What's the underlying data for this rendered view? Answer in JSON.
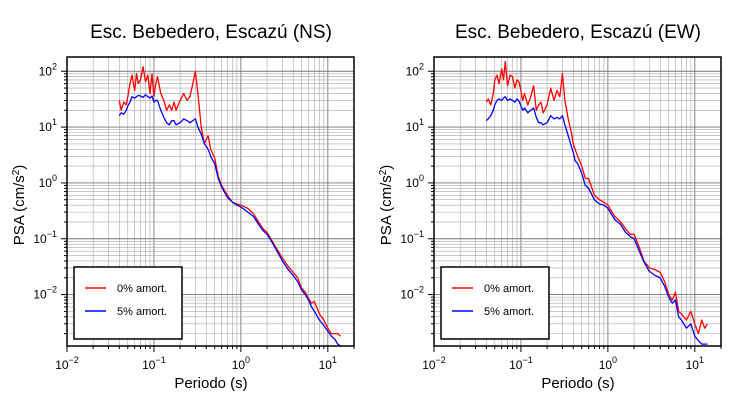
{
  "chart_data": [
    {
      "type": "line",
      "title": "Esc. Bebedero, Escazú (NS)",
      "xlabel": "Periodo (s)",
      "ylabel": "PSA (cm/s²)",
      "xscale": "log",
      "yscale": "log",
      "xlim": [
        0.01,
        20
      ],
      "ylim": [
        0.0012,
        180
      ],
      "grid": true,
      "legend_position": "bottom-left",
      "x_ticks": [
        {
          "base": "10",
          "exp": "−2",
          "value": 0.01
        },
        {
          "base": "10",
          "exp": "−1",
          "value": 0.1
        },
        {
          "base": "10",
          "exp": "0",
          "value": 1
        },
        {
          "base": "10",
          "exp": "1",
          "value": 10
        }
      ],
      "y_ticks": [
        {
          "base": "10",
          "exp": "−2",
          "value": 0.01
        },
        {
          "base": "10",
          "exp": "−1",
          "value": 0.1
        },
        {
          "base": "10",
          "exp": "0",
          "value": 1
        },
        {
          "base": "10",
          "exp": "1",
          "value": 10
        },
        {
          "base": "10",
          "exp": "2",
          "value": 100
        }
      ],
      "series": [
        {
          "name": "0% amort.",
          "color": "#ff0000",
          "x": [
            0.04,
            0.042,
            0.045,
            0.048,
            0.05,
            0.053,
            0.056,
            0.06,
            0.063,
            0.066,
            0.07,
            0.075,
            0.08,
            0.085,
            0.09,
            0.095,
            0.1,
            0.105,
            0.11,
            0.12,
            0.13,
            0.14,
            0.15,
            0.16,
            0.17,
            0.18,
            0.2,
            0.22,
            0.24,
            0.26,
            0.28,
            0.3,
            0.32,
            0.35,
            0.38,
            0.4,
            0.42,
            0.45,
            0.5,
            0.55,
            0.6,
            0.7,
            0.8,
            0.9,
            1.0,
            1.2,
            1.4,
            1.6,
            1.8,
            2.0,
            2.3,
            2.6,
            3.0,
            3.5,
            4.0,
            4.5,
            5.0,
            5.5,
            6.0,
            6.5,
            7.0,
            8.0,
            9.0,
            10.0,
            11.0,
            12.0,
            13.0,
            14.0
          ],
          "y": [
            30,
            20,
            28,
            25,
            35,
            60,
            85,
            45,
            90,
            60,
            70,
            120,
            65,
            85,
            40,
            90,
            35,
            60,
            80,
            40,
            30,
            20,
            25,
            20,
            28,
            20,
            30,
            40,
            30,
            35,
            60,
            100,
            40,
            10,
            5,
            6,
            7,
            4,
            2.8,
            1.3,
            0.9,
            0.6,
            0.45,
            0.42,
            0.4,
            0.35,
            0.28,
            0.2,
            0.15,
            0.13,
            0.09,
            0.065,
            0.045,
            0.032,
            0.025,
            0.02,
            0.013,
            0.011,
            0.0085,
            0.007,
            0.0075,
            0.0045,
            0.0035,
            0.0025,
            0.002,
            0.002,
            0.002,
            0.0018
          ]
        },
        {
          "name": "5% amort.",
          "color": "#0000ff",
          "x": [
            0.04,
            0.042,
            0.045,
            0.048,
            0.05,
            0.053,
            0.056,
            0.06,
            0.063,
            0.066,
            0.07,
            0.075,
            0.08,
            0.085,
            0.09,
            0.095,
            0.1,
            0.105,
            0.11,
            0.12,
            0.13,
            0.14,
            0.15,
            0.16,
            0.17,
            0.18,
            0.2,
            0.22,
            0.24,
            0.26,
            0.28,
            0.3,
            0.32,
            0.35,
            0.38,
            0.4,
            0.42,
            0.45,
            0.5,
            0.55,
            0.6,
            0.7,
            0.8,
            0.9,
            1.0,
            1.2,
            1.4,
            1.6,
            1.8,
            2.0,
            2.3,
            2.6,
            3.0,
            3.5,
            4.0,
            4.5,
            5.0,
            5.5,
            6.0,
            6.5,
            7.0,
            8.0,
            9.0,
            10.0,
            11.0,
            12.0,
            13.0,
            14.0
          ],
          "y": [
            16,
            18,
            17,
            20,
            24,
            28,
            35,
            33,
            35,
            37,
            36,
            34,
            38,
            35,
            33,
            36,
            28,
            30,
            30,
            20,
            15,
            12,
            11,
            13,
            13,
            11,
            12,
            14,
            13,
            12,
            13,
            14,
            10,
            7.5,
            5,
            4.5,
            4,
            3,
            2.2,
            1.2,
            0.85,
            0.55,
            0.45,
            0.4,
            0.37,
            0.3,
            0.25,
            0.18,
            0.14,
            0.12,
            0.085,
            0.06,
            0.04,
            0.028,
            0.022,
            0.017,
            0.012,
            0.01,
            0.008,
            0.006,
            0.005,
            0.0035,
            0.0028,
            0.0022,
            0.0018,
            0.0016,
            0.0013,
            0.0012
          ]
        }
      ]
    },
    {
      "type": "line",
      "title": "Esc. Bebedero, Escazú (EW)",
      "xlabel": "Periodo (s)",
      "ylabel": "PSA (cm/s²)",
      "xscale": "log",
      "yscale": "log",
      "xlim": [
        0.01,
        20
      ],
      "ylim": [
        0.0012,
        180
      ],
      "grid": true,
      "legend_position": "bottom-left",
      "x_ticks": [
        {
          "base": "10",
          "exp": "−2",
          "value": 0.01
        },
        {
          "base": "10",
          "exp": "−1",
          "value": 0.1
        },
        {
          "base": "10",
          "exp": "0",
          "value": 1
        },
        {
          "base": "10",
          "exp": "1",
          "value": 10
        }
      ],
      "y_ticks": [
        {
          "base": "10",
          "exp": "−2",
          "value": 0.01
        },
        {
          "base": "10",
          "exp": "−1",
          "value": 0.1
        },
        {
          "base": "10",
          "exp": "0",
          "value": 1
        },
        {
          "base": "10",
          "exp": "1",
          "value": 10
        },
        {
          "base": "10",
          "exp": "2",
          "value": 100
        }
      ],
      "series": [
        {
          "name": "0% amort.",
          "color": "#ff0000",
          "x": [
            0.04,
            0.042,
            0.045,
            0.048,
            0.05,
            0.053,
            0.056,
            0.06,
            0.063,
            0.066,
            0.07,
            0.075,
            0.08,
            0.085,
            0.09,
            0.095,
            0.1,
            0.105,
            0.11,
            0.12,
            0.13,
            0.14,
            0.15,
            0.16,
            0.17,
            0.18,
            0.2,
            0.22,
            0.24,
            0.26,
            0.28,
            0.3,
            0.32,
            0.35,
            0.38,
            0.4,
            0.42,
            0.45,
            0.5,
            0.55,
            0.6,
            0.7,
            0.8,
            0.9,
            1.0,
            1.2,
            1.4,
            1.6,
            1.8,
            2.0,
            2.3,
            2.6,
            3.0,
            3.5,
            4.0,
            4.5,
            5.0,
            5.5,
            6.0,
            6.5,
            7.0,
            8.0,
            9.0,
            10.0,
            11.0,
            12.0,
            13.0,
            14.0
          ],
          "y": [
            28,
            32,
            25,
            40,
            70,
            85,
            60,
            110,
            70,
            150,
            55,
            85,
            80,
            50,
            70,
            65,
            45,
            30,
            40,
            25,
            35,
            55,
            20,
            25,
            28,
            18,
            25,
            50,
            30,
            45,
            35,
            90,
            30,
            14,
            8,
            5,
            4,
            3,
            2,
            1.2,
            1.2,
            0.6,
            0.5,
            0.45,
            0.4,
            0.25,
            0.2,
            0.15,
            0.12,
            0.12,
            0.07,
            0.04,
            0.03,
            0.028,
            0.025,
            0.017,
            0.01,
            0.008,
            0.011,
            0.005,
            0.0045,
            0.0035,
            0.005,
            0.003,
            0.002,
            0.0035,
            0.0025,
            0.003
          ]
        },
        {
          "name": "5% amort.",
          "color": "#0000ff",
          "x": [
            0.04,
            0.042,
            0.045,
            0.048,
            0.05,
            0.053,
            0.056,
            0.06,
            0.063,
            0.066,
            0.07,
            0.075,
            0.08,
            0.085,
            0.09,
            0.095,
            0.1,
            0.105,
            0.11,
            0.12,
            0.13,
            0.14,
            0.15,
            0.16,
            0.17,
            0.18,
            0.2,
            0.22,
            0.24,
            0.26,
            0.28,
            0.3,
            0.32,
            0.35,
            0.38,
            0.4,
            0.42,
            0.45,
            0.5,
            0.55,
            0.6,
            0.7,
            0.8,
            0.9,
            1.0,
            1.2,
            1.4,
            1.6,
            1.8,
            2.0,
            2.3,
            2.6,
            3.0,
            3.5,
            4.0,
            4.5,
            5.0,
            5.5,
            6.0,
            6.5,
            7.0,
            8.0,
            9.0,
            10.0,
            11.0,
            12.0,
            13.0,
            14.0
          ],
          "y": [
            13,
            14,
            16,
            20,
            25,
            30,
            32,
            30,
            33,
            35,
            30,
            32,
            30,
            28,
            32,
            29,
            24,
            20,
            22,
            18,
            20,
            22,
            15,
            12,
            12,
            11,
            12,
            16,
            14,
            15,
            14,
            16,
            11,
            7,
            4.5,
            3.5,
            2.5,
            2.2,
            1.5,
            0.9,
            0.8,
            0.5,
            0.42,
            0.4,
            0.35,
            0.22,
            0.18,
            0.13,
            0.11,
            0.1,
            0.06,
            0.038,
            0.026,
            0.022,
            0.02,
            0.014,
            0.009,
            0.007,
            0.008,
            0.004,
            0.0035,
            0.0025,
            0.003,
            0.0018,
            0.0015,
            0.0013,
            0.0013,
            0.0013
          ]
        }
      ]
    }
  ]
}
